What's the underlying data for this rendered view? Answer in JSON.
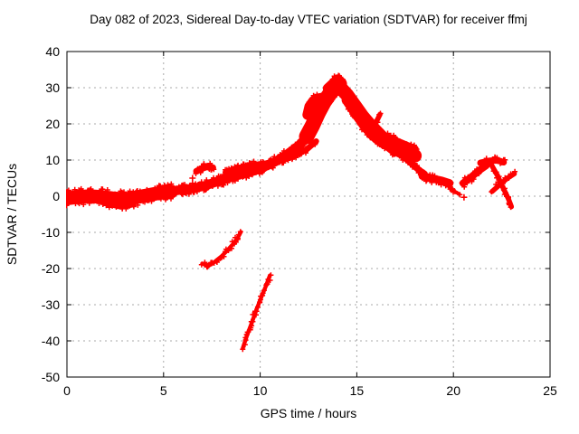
{
  "title": "Day 082 of 2023, Sidereal Day-to-day VTEC variation (SDTVAR) for receiver ffmj",
  "colors": {
    "marker": "#ff0000",
    "grid": "#a8a8a8",
    "axis": "#000000",
    "background": "#ffffff",
    "text": "#000000"
  },
  "chart_data": {
    "type": "scatter",
    "title": "Day 082 of 2023, Sidereal Day-to-day VTEC variation (SDTVAR) for receiver ffmj",
    "xlabel": "GPS time / hours",
    "ylabel": "SDTVAR / TECUs",
    "xlim": [
      0,
      25
    ],
    "ylim": [
      -50,
      40
    ],
    "xticks": [
      0,
      5,
      10,
      15,
      20,
      25
    ],
    "yticks": [
      -50,
      -40,
      -30,
      -20,
      -10,
      0,
      10,
      20,
      30,
      40
    ],
    "grid": true,
    "legend": "none",
    "marker": "plus",
    "marker_color": "#ff0000",
    "series": [
      {
        "name": "band-start",
        "half_width": 1.9,
        "points": [
          [
            0.0,
            -0.6
          ],
          [
            0.6,
            -0.2
          ],
          [
            1.2,
            0.0
          ],
          [
            1.8,
            -0.2
          ],
          [
            2.4,
            -0.6
          ],
          [
            3.0,
            -0.8
          ],
          [
            3.6,
            -0.3
          ],
          [
            4.2,
            0.3
          ],
          [
            4.8,
            0.9
          ],
          [
            5.4,
            1.3
          ]
        ]
      },
      {
        "name": "band-low-lobe",
        "half_width": 0.8,
        "points": [
          [
            2.2,
            -2.2
          ],
          [
            2.8,
            -2.9
          ],
          [
            3.4,
            -2.3
          ]
        ]
      },
      {
        "name": "rise-main",
        "half_width": 1.3,
        "points": [
          [
            5.4,
            1.4
          ],
          [
            6.0,
            1.8
          ],
          [
            6.6,
            2.2
          ],
          [
            7.2,
            3.0
          ],
          [
            7.8,
            4.1
          ],
          [
            8.4,
            5.1
          ],
          [
            9.0,
            6.1
          ],
          [
            9.6,
            6.9
          ],
          [
            10.2,
            8.1
          ],
          [
            10.8,
            9.6
          ],
          [
            11.4,
            11.6
          ],
          [
            12.0,
            14.0
          ],
          [
            12.4,
            16.3
          ]
        ]
      },
      {
        "name": "rise-braid",
        "half_width": 0.8,
        "points": [
          [
            8.2,
            6.6
          ],
          [
            8.8,
            7.7
          ],
          [
            9.4,
            8.5
          ],
          [
            10.0,
            8.9
          ],
          [
            10.6,
            9.3
          ],
          [
            11.2,
            10.1
          ],
          [
            11.8,
            11.2
          ],
          [
            12.4,
            12.9
          ],
          [
            12.9,
            15.2
          ]
        ]
      },
      {
        "name": "blob-7h",
        "half_width": 0.9,
        "points": [
          [
            6.7,
            6.9
          ],
          [
            7.0,
            7.7
          ],
          [
            7.3,
            8.2
          ],
          [
            7.55,
            7.9
          ]
        ]
      },
      {
        "name": "peak-rise",
        "half_width": 2.1,
        "points": [
          [
            12.4,
            16.5
          ],
          [
            12.7,
            19.5
          ],
          [
            13.0,
            23.0
          ],
          [
            13.3,
            26.0
          ],
          [
            13.6,
            28.3
          ],
          [
            13.9,
            30.3
          ],
          [
            14.1,
            31.0
          ]
        ]
      },
      {
        "name": "plateau-hook",
        "half_width": 1.4,
        "points": [
          [
            12.45,
            22.5
          ],
          [
            12.55,
            24.8
          ],
          [
            12.75,
            26.3
          ],
          [
            13.0,
            27.0
          ],
          [
            13.3,
            27.3
          ],
          [
            13.6,
            28.0
          ]
        ]
      },
      {
        "name": "peak-cap",
        "half_width": 1.4,
        "points": [
          [
            13.5,
            29.8
          ],
          [
            13.8,
            31.3
          ],
          [
            14.0,
            32.3
          ],
          [
            14.2,
            31.0
          ]
        ]
      },
      {
        "name": "decline-main",
        "half_width": 1.9,
        "points": [
          [
            14.1,
            30.3
          ],
          [
            14.5,
            28.0
          ],
          [
            14.9,
            25.0
          ],
          [
            15.3,
            22.0
          ],
          [
            15.7,
            19.5
          ],
          [
            16.1,
            17.3
          ],
          [
            16.5,
            15.1
          ],
          [
            16.9,
            13.4
          ],
          [
            17.3,
            12.4
          ],
          [
            17.7,
            11.7
          ],
          [
            18.0,
            11.2
          ]
        ]
      },
      {
        "name": "decline-lower",
        "half_width": 1.0,
        "points": [
          [
            14.4,
            26.5
          ],
          [
            14.9,
            22.5
          ],
          [
            15.4,
            18.8
          ],
          [
            15.9,
            16.0
          ],
          [
            16.4,
            14.0
          ]
        ]
      },
      {
        "name": "decline-upper",
        "half_width": 0.8,
        "points": [
          [
            16.6,
            16.6
          ],
          [
            17.0,
            15.6
          ],
          [
            17.4,
            14.7
          ],
          [
            17.8,
            13.8
          ],
          [
            18.05,
            13.2
          ]
        ]
      },
      {
        "name": "mid-detached",
        "half_width": 0.7,
        "points": [
          [
            15.9,
            19.3
          ],
          [
            16.05,
            21.0
          ],
          [
            16.2,
            22.6
          ]
        ]
      },
      {
        "name": "fork-down",
        "half_width": 0.9,
        "points": [
          [
            17.4,
            11.0
          ],
          [
            17.8,
            9.2
          ],
          [
            18.2,
            7.3
          ],
          [
            18.5,
            6.2
          ]
        ]
      },
      {
        "name": "tail-band",
        "half_width": 1.1,
        "points": [
          [
            18.4,
            5.6
          ],
          [
            18.9,
            4.9
          ],
          [
            19.4,
            4.3
          ],
          [
            19.8,
            3.6
          ]
        ]
      },
      {
        "name": "tail-spur",
        "half_width": 0.5,
        "points": [
          [
            19.7,
            3.0
          ],
          [
            20.0,
            1.5
          ],
          [
            20.3,
            0.6
          ]
        ]
      },
      {
        "name": "right-rise",
        "half_width": 1.0,
        "points": [
          [
            20.5,
            3.6
          ],
          [
            20.9,
            5.2
          ],
          [
            21.3,
            7.0
          ],
          [
            21.7,
            8.5
          ]
        ]
      },
      {
        "name": "top-blob",
        "half_width": 0.9,
        "points": [
          [
            21.4,
            9.2
          ],
          [
            21.9,
            9.8
          ],
          [
            22.3,
            9.9
          ],
          [
            22.6,
            9.4
          ]
        ]
      },
      {
        "name": "x-descending",
        "half_width": 0.7,
        "points": [
          [
            21.95,
            8.8
          ],
          [
            22.3,
            5.5
          ],
          [
            22.6,
            2.0
          ],
          [
            22.85,
            -0.8
          ],
          [
            23.0,
            -2.9
          ]
        ]
      },
      {
        "name": "x-ascending",
        "half_width": 0.7,
        "points": [
          [
            22.0,
            1.3
          ],
          [
            22.4,
            3.2
          ],
          [
            22.8,
            5.0
          ],
          [
            23.15,
            6.2
          ]
        ]
      },
      {
        "name": "outlier-arc-1",
        "half_width": 0.55,
        "points": [
          [
            7.0,
            -18.6
          ],
          [
            7.2,
            -19.1
          ],
          [
            7.45,
            -18.9
          ],
          [
            7.7,
            -17.9
          ],
          [
            8.0,
            -16.6
          ],
          [
            8.3,
            -15.0
          ],
          [
            8.6,
            -13.2
          ],
          [
            8.85,
            -11.4
          ],
          [
            9.0,
            -9.9
          ]
        ]
      },
      {
        "name": "outlier-arc-2",
        "half_width": 0.55,
        "points": [
          [
            9.1,
            -42.0
          ],
          [
            9.3,
            -38.8
          ],
          [
            9.55,
            -35.2
          ],
          [
            9.8,
            -31.5
          ],
          [
            10.05,
            -28.0
          ],
          [
            10.3,
            -24.8
          ],
          [
            10.5,
            -21.9
          ]
        ]
      }
    ],
    "isolated_points": [
      [
        20.55,
        -0.3
      ],
      [
        6.5,
        5.0
      ],
      [
        0.0,
        0.4
      ],
      [
        0.0,
        -0.9
      ]
    ]
  }
}
